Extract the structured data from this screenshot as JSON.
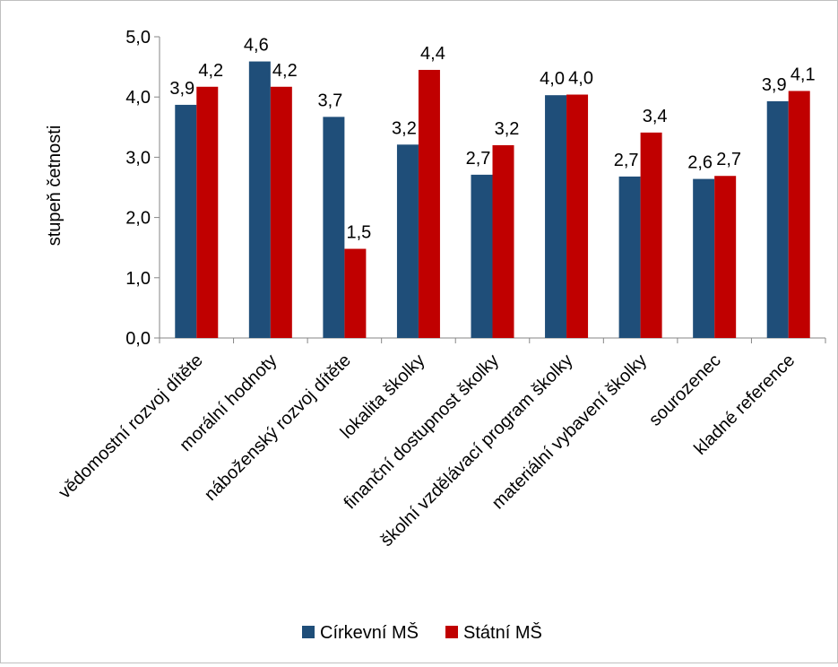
{
  "chart_data": {
    "type": "bar",
    "title": "",
    "xlabel": "",
    "ylabel": "stupeň četnosti",
    "ylim": [
      0,
      5
    ],
    "yticks": [
      "0,0",
      "1,0",
      "2,0",
      "3,0",
      "4,0",
      "5,0"
    ],
    "grid": false,
    "legend_position": "bottom",
    "categories": [
      "vědomostní rozvoj dítěte",
      "morální hodnoty",
      "náboženský rozvoj dítěte",
      "lokalita školky",
      "finanční dostupnost školky",
      "školní vzdělávací program školky",
      "materiální vybavení školky",
      "sourozenec",
      "kladné reference"
    ],
    "series": [
      {
        "name": "Církevní MŠ",
        "color": "#1F4E79",
        "values": [
          3.87,
          4.59,
          3.67,
          3.21,
          2.71,
          4.03,
          2.68,
          2.64,
          3.93
        ],
        "labels": [
          "3,9",
          "4,6",
          "3,7",
          "3,2",
          "2,7",
          "4,0",
          "2,7",
          "2,6",
          "3,9"
        ]
      },
      {
        "name": "Státní MŠ",
        "color": "#C00000",
        "values": [
          4.17,
          4.17,
          1.48,
          4.45,
          3.2,
          4.04,
          3.41,
          2.69,
          4.1
        ],
        "labels": [
          "4,2",
          "4,2",
          "1,5",
          "4,4",
          "3,2",
          "4,0",
          "3,4",
          "2,7",
          "4,1"
        ]
      }
    ]
  }
}
